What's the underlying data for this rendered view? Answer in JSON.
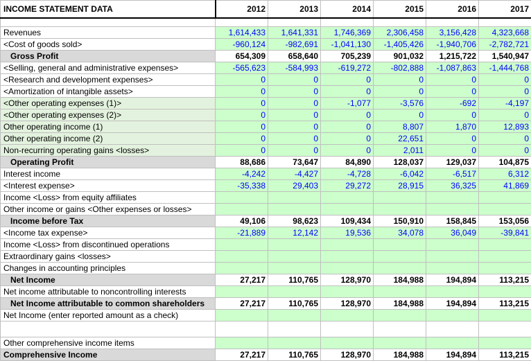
{
  "header": {
    "title": "INCOME STATEMENT DATA",
    "years": [
      "2012",
      "2013",
      "2014",
      "2015",
      "2016",
      "2017"
    ]
  },
  "rows": [
    {
      "label": "Revenues",
      "values": [
        "1,614,433",
        "1,641,331",
        "1,746,369",
        "2,306,458",
        "3,156,428",
        "4,323,668"
      ]
    },
    {
      "label": "<Cost of goods sold>",
      "values": [
        "-960,124",
        "-982,691",
        "-1,041,130",
        "-1,405,426",
        "-1,940,706",
        "-2,782,721"
      ]
    },
    {
      "label": "Gross Profit",
      "values": [
        "654,309",
        "658,640",
        "705,239",
        "901,032",
        "1,215,722",
        "1,540,947"
      ]
    },
    {
      "label": "<Selling, general and administrative expenses>",
      "values": [
        "-565,623",
        "-584,993",
        "-619,272",
        "-802,888",
        "-1,087,863",
        "-1,444,768"
      ]
    },
    {
      "label": "<Research and development expenses>",
      "values": [
        "0",
        "0",
        "0",
        "0",
        "0",
        "0"
      ]
    },
    {
      "label": "<Amortization of intangible assets>",
      "values": [
        "0",
        "0",
        "0",
        "0",
        "0",
        "0"
      ]
    },
    {
      "label": "<Other operating expenses (1)>",
      "values": [
        "0",
        "0",
        "-1,077",
        "-3,576",
        "-692",
        "-4,197"
      ]
    },
    {
      "label": "<Other operating expenses (2)>",
      "values": [
        "0",
        "0",
        "0",
        "0",
        "0",
        "0"
      ]
    },
    {
      "label": "Other operating income (1)",
      "values": [
        "0",
        "0",
        "0",
        "8,807",
        "1,870",
        "12,893"
      ]
    },
    {
      "label": "Other operating income (2)",
      "values": [
        "0",
        "0",
        "0",
        "22,651",
        "0",
        "0"
      ]
    },
    {
      "label": "Non-recurring operating gains <losses>",
      "values": [
        "0",
        "0",
        "0",
        "2,011",
        "0",
        "0"
      ]
    },
    {
      "label": "Operating Profit",
      "values": [
        "88,686",
        "73,647",
        "84,890",
        "128,037",
        "129,037",
        "104,875"
      ]
    },
    {
      "label": "Interest income",
      "values": [
        "-4,242",
        "-4,427",
        "-4,728",
        "-6,042",
        "-6,517",
        "6,312"
      ]
    },
    {
      "label": "<Interest expense>",
      "values": [
        "-35,338",
        "29,403",
        "29,272",
        "28,915",
        "36,325",
        "41,869"
      ]
    },
    {
      "label": "Income <Loss> from equity affiliates",
      "values": [
        "",
        "",
        "",
        "",
        "",
        ""
      ]
    },
    {
      "label": "Other income or gains <Other expenses or losses>",
      "values": [
        "",
        "",
        "",
        "",
        "",
        ""
      ]
    },
    {
      "label": "Income before Tax",
      "values": [
        "49,106",
        "98,623",
        "109,434",
        "150,910",
        "158,845",
        "153,056"
      ]
    },
    {
      "label": "<Income tax expense>",
      "values": [
        "-21,889",
        "12,142",
        "19,536",
        "34,078",
        "36,049",
        "-39,841"
      ]
    },
    {
      "label": "Income <Loss> from discontinued operations",
      "values": [
        "",
        "",
        "",
        "",
        "",
        ""
      ]
    },
    {
      "label": "Extraordinary gains <losses>",
      "values": [
        "",
        "",
        "",
        "",
        "",
        ""
      ]
    },
    {
      "label": "Changes in accounting principles",
      "values": [
        "",
        "",
        "",
        "",
        "",
        ""
      ]
    },
    {
      "label": "Net Income",
      "values": [
        "27,217",
        "110,765",
        "128,970",
        "184,988",
        "194,894",
        "113,215"
      ]
    },
    {
      "label": "Net income attributable to noncontrolling interests",
      "values": [
        "",
        "",
        "",
        "",
        "",
        ""
      ]
    },
    {
      "label": "Net Income attributable to common shareholders",
      "values": [
        "27,217",
        "110,765",
        "128,970",
        "184,988",
        "194,894",
        "113,215"
      ]
    },
    {
      "label": "Net Income (enter reported amount as a check)",
      "values": [
        "",
        "",
        "",
        "",
        "",
        ""
      ]
    },
    {
      "label": "Other comprehensive income items",
      "values": [
        "",
        "",
        "",
        "",
        "",
        ""
      ]
    },
    {
      "label": "Comprehensive Income",
      "values": [
        "27,217",
        "110,765",
        "128,970",
        "184,988",
        "194,894",
        "113,215"
      ]
    }
  ]
}
